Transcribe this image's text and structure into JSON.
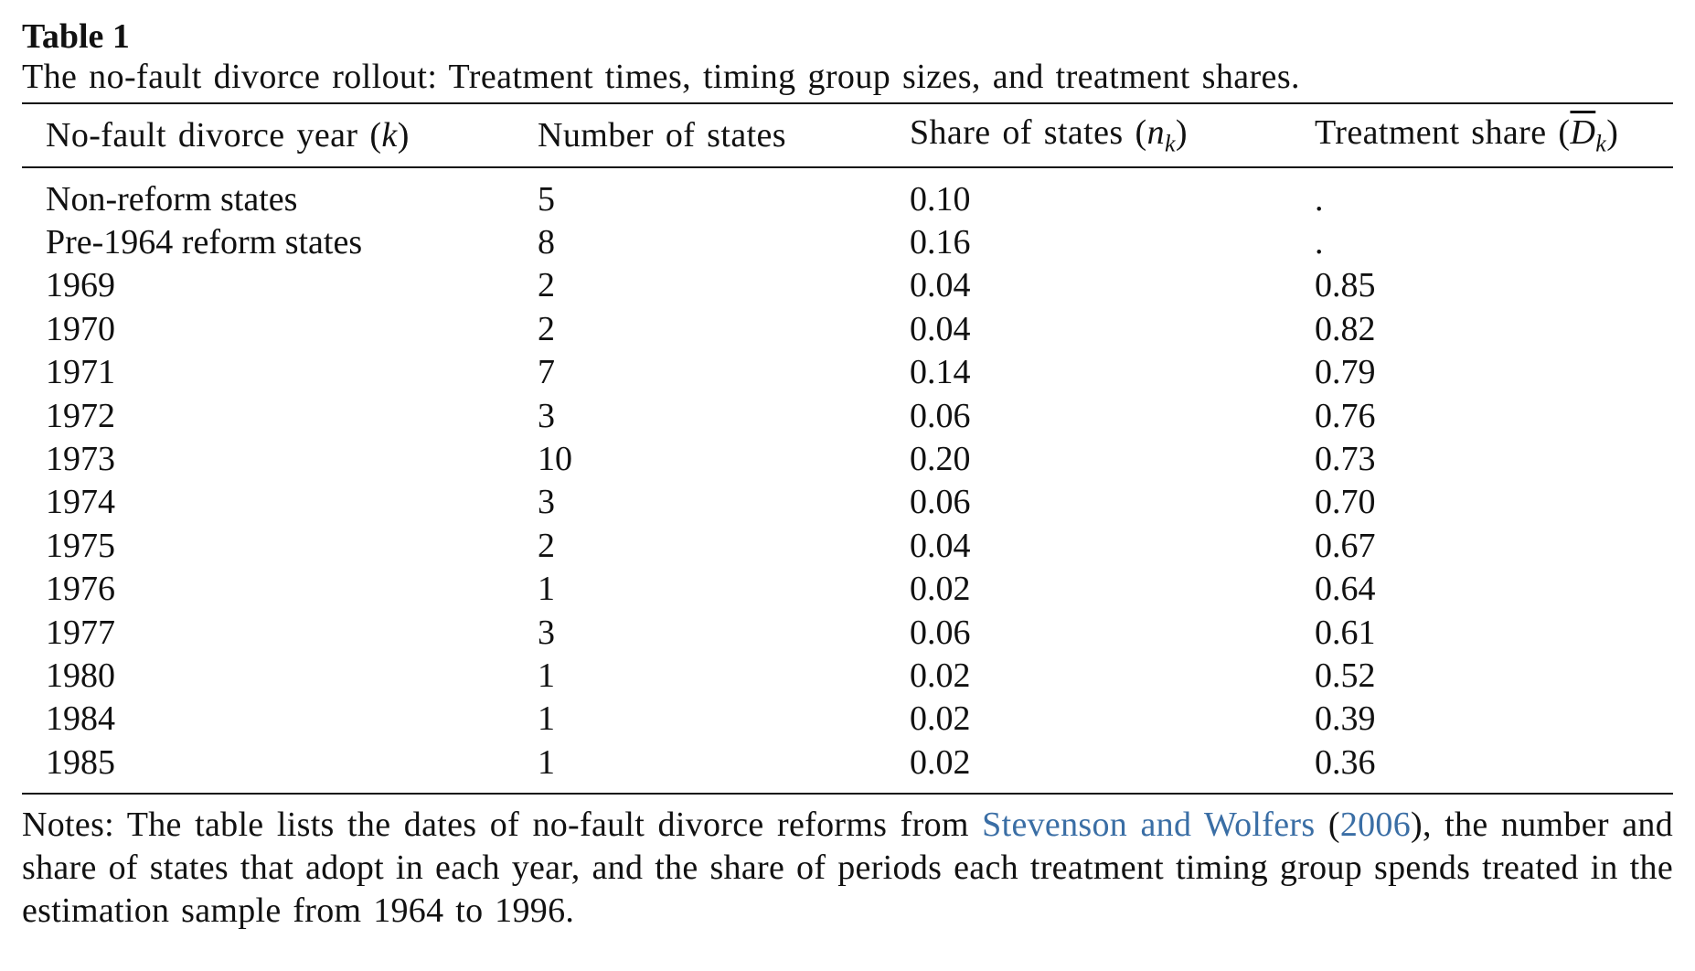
{
  "table": {
    "label": "Table 1",
    "caption": "The no-fault divorce rollout: Treatment times, timing group sizes, and treatment shares.",
    "headers": {
      "col1_text": "No-fault divorce year (",
      "col1_var": "k",
      "col1_close": ")",
      "col2_text": "Number of states",
      "col3_text": "Share of states (",
      "col3_var": "n",
      "col3_sub": "k",
      "col3_close": ")",
      "col4_text": "Treatment share (",
      "col4_var": "D",
      "col4_sub": "k",
      "col4_close": ")"
    },
    "rows": [
      {
        "year": "Non-reform states",
        "num": "5",
        "share": "0.10",
        "treat": "."
      },
      {
        "year": "Pre-1964 reform states",
        "num": "8",
        "share": "0.16",
        "treat": "."
      },
      {
        "year": "1969",
        "num": "2",
        "share": "0.04",
        "treat": "0.85"
      },
      {
        "year": "1970",
        "num": "2",
        "share": "0.04",
        "treat": "0.82"
      },
      {
        "year": "1971",
        "num": "7",
        "share": "0.14",
        "treat": "0.79"
      },
      {
        "year": "1972",
        "num": "3",
        "share": "0.06",
        "treat": "0.76"
      },
      {
        "year": "1973",
        "num": "10",
        "share": "0.20",
        "treat": "0.73"
      },
      {
        "year": "1974",
        "num": "3",
        "share": "0.06",
        "treat": "0.70"
      },
      {
        "year": "1975",
        "num": "2",
        "share": "0.04",
        "treat": "0.67"
      },
      {
        "year": "1976",
        "num": "1",
        "share": "0.02",
        "treat": "0.64"
      },
      {
        "year": "1977",
        "num": "3",
        "share": "0.06",
        "treat": "0.61"
      },
      {
        "year": "1980",
        "num": "1",
        "share": "0.02",
        "treat": "0.52"
      },
      {
        "year": "1984",
        "num": "1",
        "share": "0.02",
        "treat": "0.39"
      },
      {
        "year": "1985",
        "num": "1",
        "share": "0.02",
        "treat": "0.36"
      }
    ]
  },
  "notes": {
    "prefix": "Notes: The table lists the dates of no-fault divorce reforms from ",
    "ref_authors": "Stevenson and Wolfers",
    "ref_open": " (",
    "ref_year": "2006",
    "ref_close": ")",
    "suffix": ", the number and share of states that adopt in each year, and the share of periods each treatment timing group spends treated in the estimation sample from 1964 to 1996.",
    "link_color": "#3a6ea5"
  }
}
